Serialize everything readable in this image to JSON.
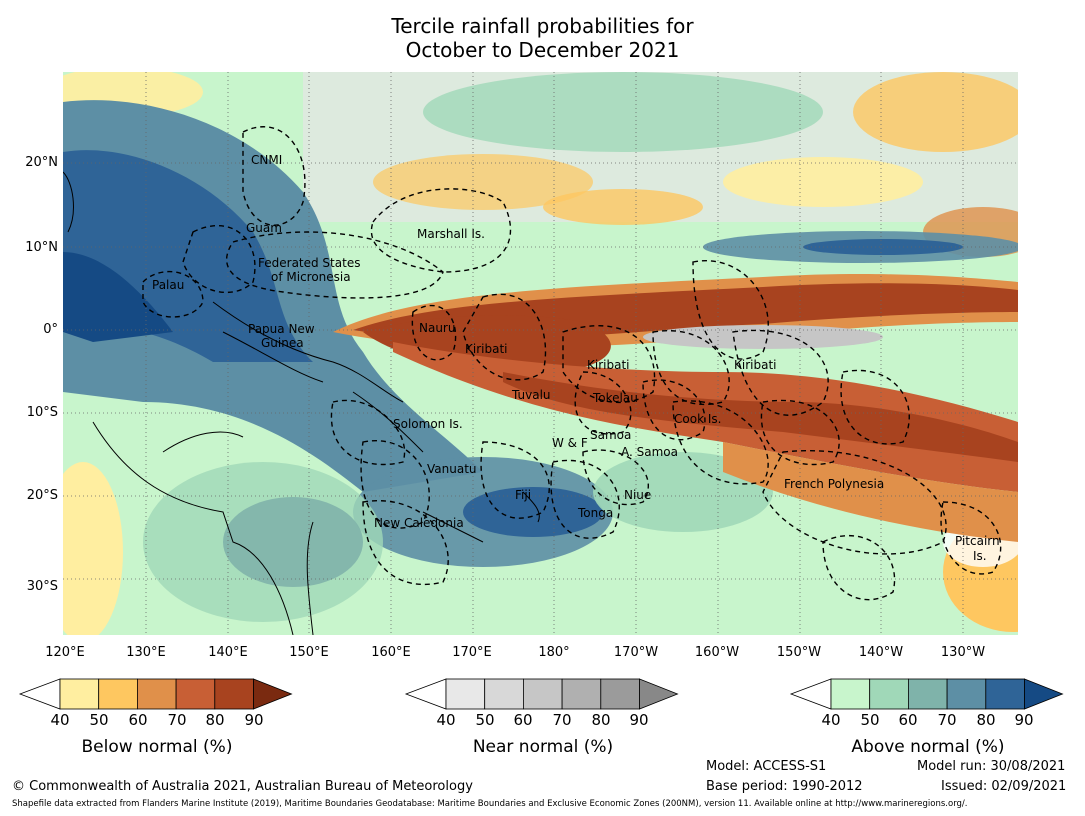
{
  "title": {
    "line1": "Tercile rainfall probabilities for",
    "line2": "October to December 2021"
  },
  "latitude_ticks": [
    "20°N",
    "10°N",
    "0°",
    "10°S",
    "20°S",
    "30°S"
  ],
  "longitude_ticks": [
    "120°E",
    "130°E",
    "140°E",
    "150°E",
    "160°E",
    "170°E",
    "180°",
    "170°W",
    "160°W",
    "150°W",
    "140°W",
    "130°W"
  ],
  "regions": [
    "CNMI",
    "Guam",
    "Marshall Is.",
    "Federated States",
    "of Micronesia",
    "Palau",
    "Papua New",
    "Guinea",
    "Nauru",
    "Kiribati",
    "Kiribati",
    "Kiribati",
    "Tuvalu",
    "Tokelau",
    "Cook Is.",
    "Solomon Is.",
    "Samoa",
    "W & F",
    "A. Samoa",
    "Vanuatu",
    "Fiji",
    "Niue",
    "Tonga",
    "New Caledonia",
    "French Polynesia",
    "Pitcairn",
    "Is."
  ],
  "legends": [
    {
      "label": "Below normal (%)",
      "ticks": [
        "40",
        "50",
        "60",
        "70",
        "80",
        "90"
      ],
      "colors": [
        "#ffeea0",
        "#fec760",
        "#e0904a",
        "#c85f35",
        "#a8431f",
        "#7a2a10"
      ]
    },
    {
      "label": "Near normal (%)",
      "ticks": [
        "40",
        "50",
        "60",
        "70",
        "80",
        "90"
      ],
      "colors": [
        "#e8e8e8",
        "#d8d8d8",
        "#c6c6c6",
        "#b0b0b0",
        "#9b9b9b",
        "#888888"
      ]
    },
    {
      "label": "Above normal (%)",
      "ticks": [
        "40",
        "50",
        "60",
        "70",
        "80",
        "90"
      ],
      "colors": [
        "#c8f5cc",
        "#a0d8b8",
        "#7fb3aa",
        "#5d8fa5",
        "#2f6497",
        "#154a84"
      ]
    }
  ],
  "footer": {
    "copyright": "© Commonwealth of Australia 2021, Australian Bureau of Meteorology",
    "shapefile": "Shapefile data extracted from Flanders Marine Institute (2019), Maritime Boundaries Geodatabase: Maritime Boundaries and Exclusive Economic Zones (200NM), version 11. Available online at http://www.marineregions.org/.",
    "model": "Model: ACCESS-S1",
    "base_period": "Base period: 1990-2012",
    "model_run": "Model run: 30/08/2021",
    "issued": "Issued: 02/09/2021"
  }
}
